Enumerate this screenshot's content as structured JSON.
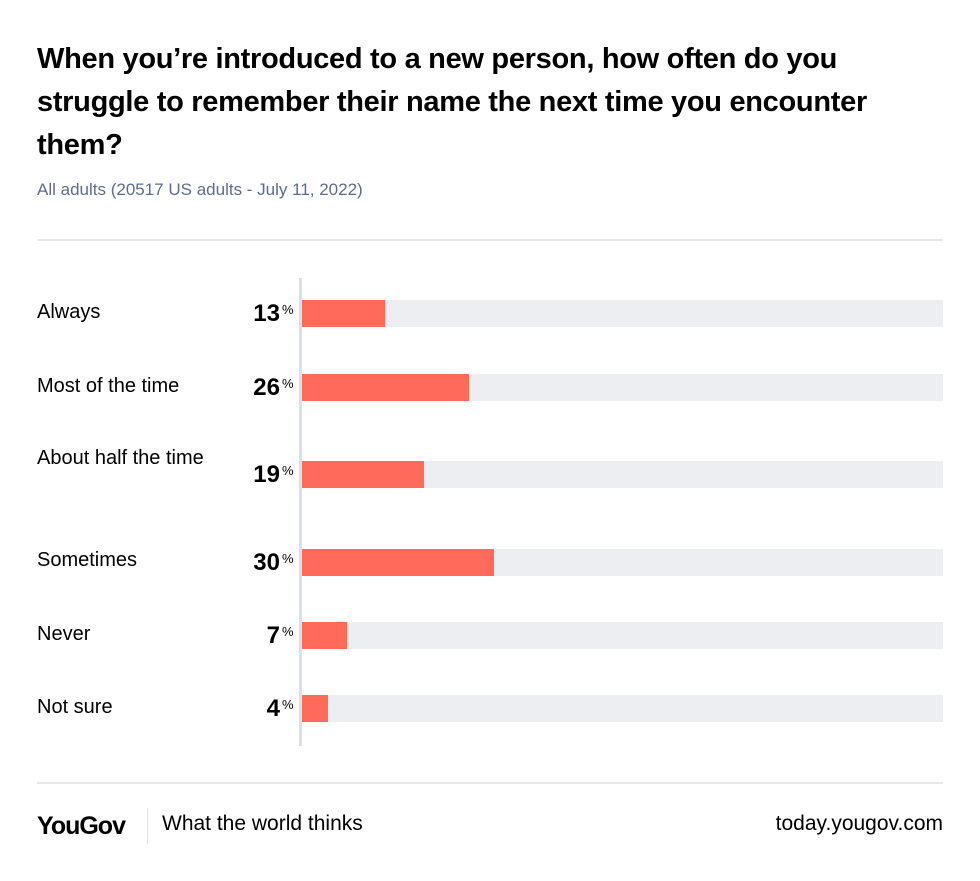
{
  "header": {
    "title": "When you’re introduced to a new person, how often do you struggle to remember their name the next time you encounter them?",
    "subtitle": "All adults (20517 US adults - July 11, 2022)"
  },
  "rows": [
    {
      "label": "Always",
      "value": "13",
      "unit": "%"
    },
    {
      "label": "Most of the time",
      "value": "26",
      "unit": "%"
    },
    {
      "label": "About half the time",
      "value": "19",
      "unit": "%"
    },
    {
      "label": "Sometimes",
      "value": "30",
      "unit": "%"
    },
    {
      "label": "Never",
      "value": "7",
      "unit": "%"
    },
    {
      "label": "Not sure",
      "value": "4",
      "unit": "%"
    }
  ],
  "footer": {
    "logo": "YouGov",
    "tagline": "What the world thinks",
    "site": "today.yougov.com"
  },
  "colors": {
    "bar": "#ff6a5b",
    "track": "#edeef2",
    "subtitle": "#5f6b8c"
  },
  "chart_data": {
    "type": "bar",
    "orientation": "horizontal",
    "title": "When you’re introduced to a new person, how often do you struggle to remember their name the next time you encounter them?",
    "subtitle": "All adults (20517 US adults - July 11, 2022)",
    "categories": [
      "Always",
      "Most of the time",
      "About half the time",
      "Sometimes",
      "Never",
      "Not sure"
    ],
    "values": [
      13,
      26,
      19,
      30,
      7,
      4
    ],
    "unit": "%",
    "xlim": [
      0,
      100
    ],
    "grid": false,
    "legend": null
  }
}
